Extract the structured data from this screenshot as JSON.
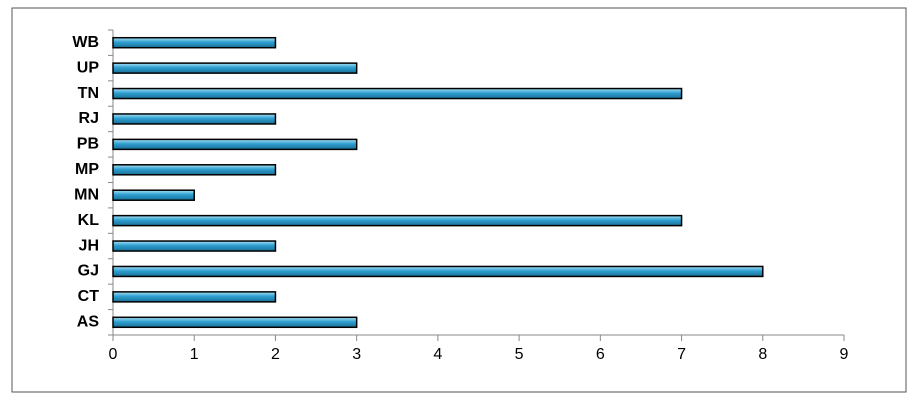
{
  "chart_data": {
    "type": "bar",
    "orientation": "horizontal",
    "categories": [
      "AS",
      "CT",
      "GJ",
      "JH",
      "KL",
      "MN",
      "MP",
      "PB",
      "RJ",
      "TN",
      "UP",
      "WB"
    ],
    "values": [
      3,
      2,
      8,
      2,
      7,
      1,
      2,
      3,
      2,
      7,
      3,
      2
    ],
    "color": "#2d9fd0",
    "xlim": [
      0,
      9
    ],
    "xticks": [
      0,
      1,
      2,
      3,
      4,
      5,
      6,
      7,
      8,
      9
    ],
    "grid": false
  }
}
